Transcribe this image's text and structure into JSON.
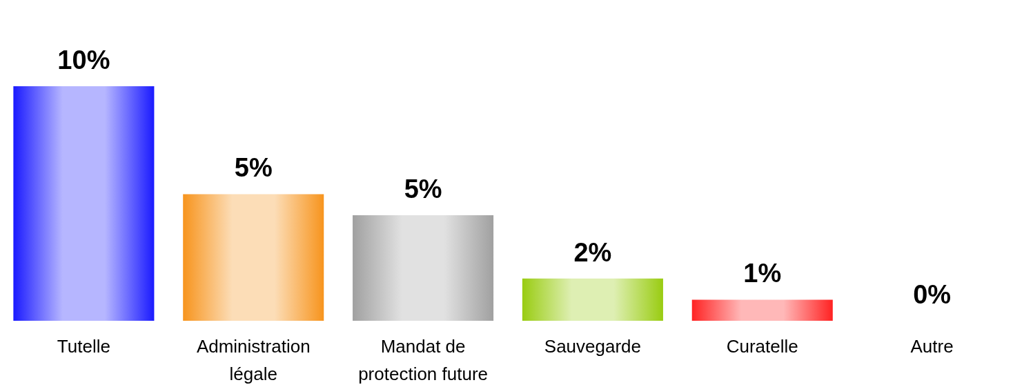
{
  "chart_data": {
    "type": "bar",
    "categories": [
      "Tutelle",
      "Administration légale",
      "Mandat de protection future",
      "Sauvegarde",
      "Curatelle",
      "Autre"
    ],
    "values": [
      10,
      5.4,
      4.5,
      1.8,
      0.9,
      0
    ],
    "value_labels": [
      "10%",
      "5%",
      "5%",
      "2%",
      "1%",
      "0%"
    ],
    "colors": [
      "#1a1aff",
      "#f7941d",
      "#a0a0a0",
      "#99cc11",
      "#ff2222",
      "#a0a0a0"
    ],
    "grid": false
  }
}
